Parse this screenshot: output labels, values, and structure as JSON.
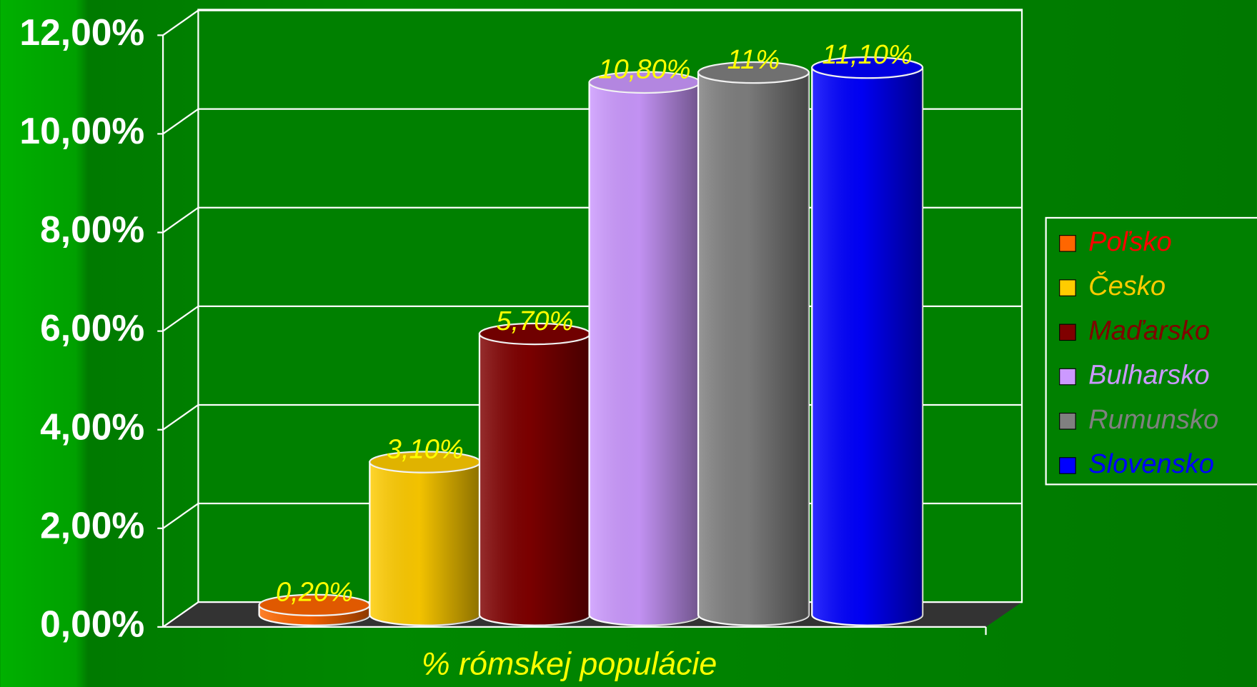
{
  "chart_data": {
    "type": "bar3d",
    "categories": [
      "% rómskej populácie"
    ],
    "series": [
      {
        "name": "Poľsko",
        "color": "#ff6600",
        "label_color": "#ff0000",
        "values": [
          0.2
        ],
        "value_labels": [
          "0,20%"
        ]
      },
      {
        "name": "Česko",
        "color": "#ffcc00",
        "label_color": "#ffcc00",
        "values": [
          3.1
        ],
        "value_labels": [
          "3,10%"
        ]
      },
      {
        "name": "Maďarsko",
        "color": "#800000",
        "label_color": "#800000",
        "values": [
          5.7
        ],
        "value_labels": [
          "5,70%"
        ]
      },
      {
        "name": "Bulharsko",
        "color": "#cc99ff",
        "label_color": "#cc99ff",
        "values": [
          10.8
        ],
        "value_labels": [
          "10,80%"
        ]
      },
      {
        "name": "Rumunsko",
        "color": "#808080",
        "label_color": "#808080",
        "values": [
          11
        ],
        "value_labels": [
          "11%"
        ]
      },
      {
        "name": "Slovensko",
        "color": "#0000ff",
        "label_color": "#0000ff",
        "values": [
          11.1
        ],
        "value_labels": [
          "11,10%"
        ]
      }
    ],
    "ylim": [
      0,
      12
    ],
    "yticks": [
      {
        "value": 0,
        "label": "0,00%"
      },
      {
        "value": 2,
        "label": "2,00%"
      },
      {
        "value": 4,
        "label": "4,00%"
      },
      {
        "value": 6,
        "label": "6,00%"
      },
      {
        "value": 8,
        "label": "8,00%"
      },
      {
        "value": 10,
        "label": "10,00%"
      },
      {
        "value": 12,
        "label": "12,00%"
      }
    ],
    "grid": true,
    "legend": "right"
  }
}
